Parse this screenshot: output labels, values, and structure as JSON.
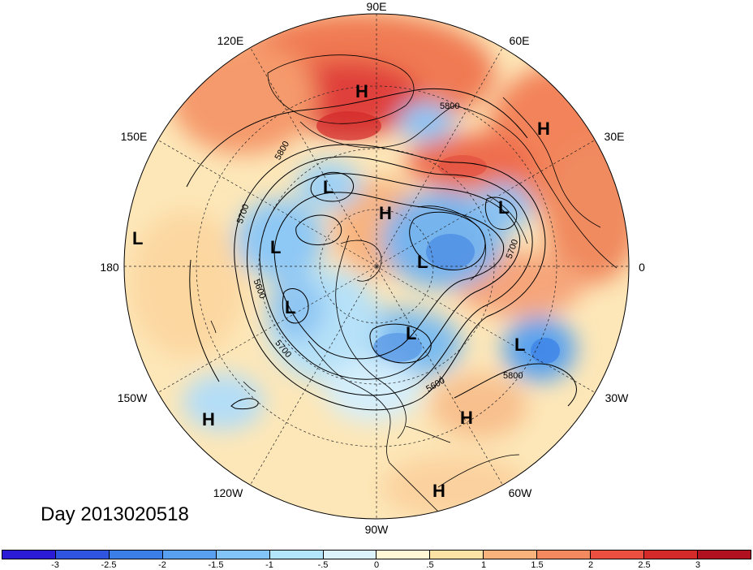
{
  "title": "Day 2013020518",
  "longitude_labels": [
    "90E",
    "60E",
    "30E",
    "0",
    "30W",
    "60W",
    "90W",
    "120W",
    "150W",
    "180",
    "150E",
    "120E"
  ],
  "pressure_systems": [
    {
      "type": "H",
      "label": "H"
    },
    {
      "type": "H",
      "label": "H"
    },
    {
      "type": "L",
      "label": "L"
    },
    {
      "type": "H",
      "label": "H"
    },
    {
      "type": "L",
      "label": "L"
    },
    {
      "type": "L",
      "label": "L"
    },
    {
      "type": "L",
      "label": "L"
    },
    {
      "type": "L",
      "label": "L"
    },
    {
      "type": "L",
      "label": "L"
    },
    {
      "type": "L",
      "label": "L"
    },
    {
      "type": "L",
      "label": "L"
    },
    {
      "type": "H",
      "label": "H"
    },
    {
      "type": "H",
      "label": "H"
    },
    {
      "type": "H",
      "label": "H"
    }
  ],
  "contour_labels": [
    "5800",
    "5800",
    "5700",
    "5600",
    "5700",
    "5600",
    "5700",
    "5800"
  ],
  "colorbar": {
    "ticks": [
      "-3",
      "-2.5",
      "-2",
      "-1.5",
      "-1",
      "-.5",
      "0",
      ".5",
      "1",
      "1.5",
      "2",
      "2.5",
      "3"
    ],
    "colors": [
      "#2b1ad6",
      "#2f55e0",
      "#3b7fe6",
      "#5aa0f0",
      "#83c4f8",
      "#b4e6fb",
      "#dcf3fb",
      "#fff7d6",
      "#fde2a6",
      "#f8b37c",
      "#f38a5f",
      "#ea4f3f",
      "#d42a2a",
      "#b01020"
    ]
  }
}
